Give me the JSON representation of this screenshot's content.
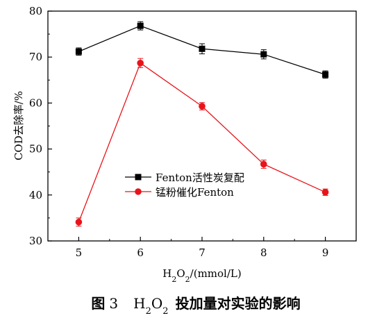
{
  "chart_data": {
    "type": "line",
    "x": [
      5,
      6,
      7,
      8,
      9
    ],
    "xlim": [
      4.5,
      9.5
    ],
    "ylim": [
      30,
      80
    ],
    "xticks": [
      5,
      6,
      7,
      8,
      9
    ],
    "yticks": [
      30,
      40,
      50,
      60,
      70,
      80
    ],
    "xlabel": "H2O2/(mmol/L)",
    "ylabel": "COD去除率/%",
    "grid": false,
    "legend_position": "center-right",
    "series": [
      {
        "name": "Fenton活性炭复配",
        "color": "#000000",
        "marker": "square",
        "values": [
          71.2,
          76.8,
          71.8,
          70.6,
          66.2
        ],
        "errors": [
          0.8,
          0.9,
          1.1,
          1.0,
          0.8
        ]
      },
      {
        "name": "锰粉催化Fenton",
        "color": "#e8141a",
        "marker": "circle",
        "values": [
          34.1,
          68.7,
          59.3,
          46.7,
          40.6
        ],
        "errors": [
          0.9,
          1.0,
          0.8,
          0.9,
          0.7
        ]
      }
    ]
  },
  "caption": {
    "prefix": "图",
    "number": "3",
    "text": "投加量对实验的影响"
  }
}
